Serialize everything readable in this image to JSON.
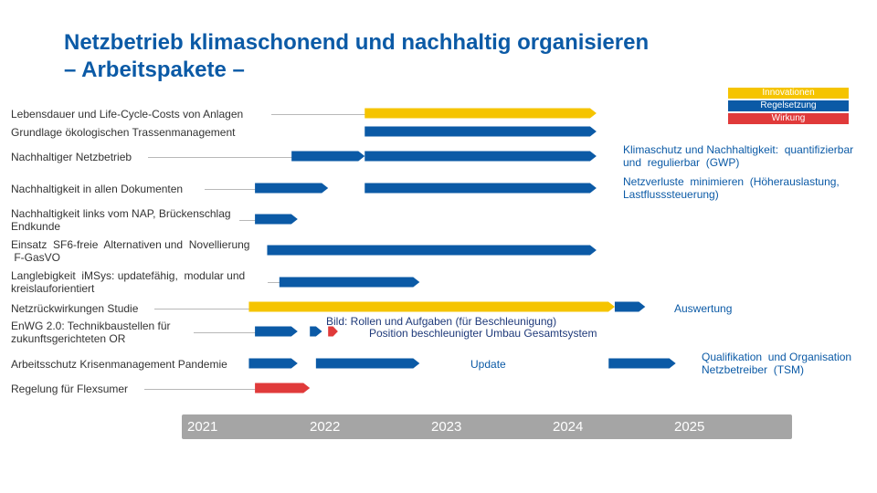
{
  "title": {
    "line1": "Netzbetrieb klimaschonend und nachhaltig organisieren",
    "line2": "– Arbeitspakete –"
  },
  "legend": [
    {
      "label": "Innovationen",
      "color": "#f5c400"
    },
    {
      "label": "Regelsetzung",
      "color": "#0b5aa6"
    },
    {
      "label": "Wirkung",
      "color": "#e03a3a"
    }
  ],
  "rows": [
    {
      "label": "Lebensdauer  und Life-Cycle-Costs  von Anlagen"
    },
    {
      "label": "Grundlage  ökologischen Trassenmanagement"
    },
    {
      "label": "Nachhaltiger  Netzbetrieb"
    },
    {
      "label": "Nachhaltigkeit  in allen Dokumenten"
    },
    {
      "label": "Nachhaltigkeit links vom NAP, Brückenschlag\nEndkunde"
    },
    {
      "label": "Einsatz  SF6-freie  Alternativen und  Novellierung\n F-GasVO"
    },
    {
      "label": "Langlebigkeit  iMSys: updatefähig,  modular und\nkreislauforientiert"
    },
    {
      "label": "Netzrückwirkungen  Studie"
    },
    {
      "label": "EnWG 2.0: Technikbaustellen für\nzukunftsgerichteten OR"
    },
    {
      "label": "Arbeitsschutz  Krisenmanagement  Pandemie"
    },
    {
      "label": "Regelung  für Flexsumer"
    }
  ],
  "notes": {
    "klimaschutz": "Klimaschutz und Nachhaltigkeit:  quantifizierbar\nund  regulierbar  (GWP)",
    "netzverluste": "Netzverluste  minimieren  (Höherauslastung,\nLastflusssteuerung)",
    "auswertung": "Auswertung",
    "rollen": "Bild: Rollen  und Aufgaben  (für Beschleunigung)",
    "position": "Position  beschleunigter  Umbau  Gesamtsystem",
    "update": "Update",
    "qualifikation": "Qualifikation  und Organisation\nNetzbetreiber  (TSM)"
  },
  "timeline": {
    "years": [
      "2021",
      "2022",
      "2023",
      "2024",
      "2025"
    ]
  },
  "chart_data": {
    "type": "gantt",
    "x_axis": [
      "2021",
      "2022",
      "2023",
      "2024",
      "2025"
    ],
    "colors": {
      "innovation": "#f5c400",
      "regel": "#0b5aa6",
      "wirkung": "#e03a3a"
    },
    "tasks": [
      {
        "row": 0,
        "start": 2022.5,
        "end": 2024.4,
        "kind": "innovation"
      },
      {
        "row": 1,
        "start": 2022.5,
        "end": 2024.4,
        "kind": "regel"
      },
      {
        "row": 2,
        "start": 2021.9,
        "end": 2022.5,
        "kind": "regel"
      },
      {
        "row": 2,
        "start": 2022.5,
        "end": 2024.4,
        "kind": "regel"
      },
      {
        "row": 3,
        "start": 2021.6,
        "end": 2022.2,
        "kind": "regel"
      },
      {
        "row": 3,
        "start": 2022.5,
        "end": 2024.4,
        "kind": "regel"
      },
      {
        "row": 4,
        "start": 2021.6,
        "end": 2021.95,
        "kind": "regel"
      },
      {
        "row": 5,
        "start": 2021.7,
        "end": 2024.4,
        "kind": "regel"
      },
      {
        "row": 6,
        "start": 2021.8,
        "end": 2022.95,
        "kind": "regel"
      },
      {
        "row": 7,
        "start": 2021.55,
        "end": 2024.55,
        "kind": "innovation"
      },
      {
        "row": 7,
        "start": 2024.55,
        "end": 2024.8,
        "kind": "regel"
      },
      {
        "row": 8,
        "start": 2021.6,
        "end": 2021.95,
        "kind": "regel"
      },
      {
        "row": 8,
        "start": 2022.05,
        "end": 2022.15,
        "kind": "regel"
      },
      {
        "row": 8,
        "start": 2022.2,
        "end": 2022.28,
        "kind": "wirkung"
      },
      {
        "row": 9,
        "start": 2021.55,
        "end": 2021.95,
        "kind": "regel"
      },
      {
        "row": 9,
        "start": 2022.1,
        "end": 2022.95,
        "kind": "regel"
      },
      {
        "row": 9,
        "start": 2024.5,
        "end": 2025.05,
        "kind": "regel"
      },
      {
        "row": 10,
        "start": 2021.6,
        "end": 2022.05,
        "kind": "wirkung"
      }
    ]
  }
}
